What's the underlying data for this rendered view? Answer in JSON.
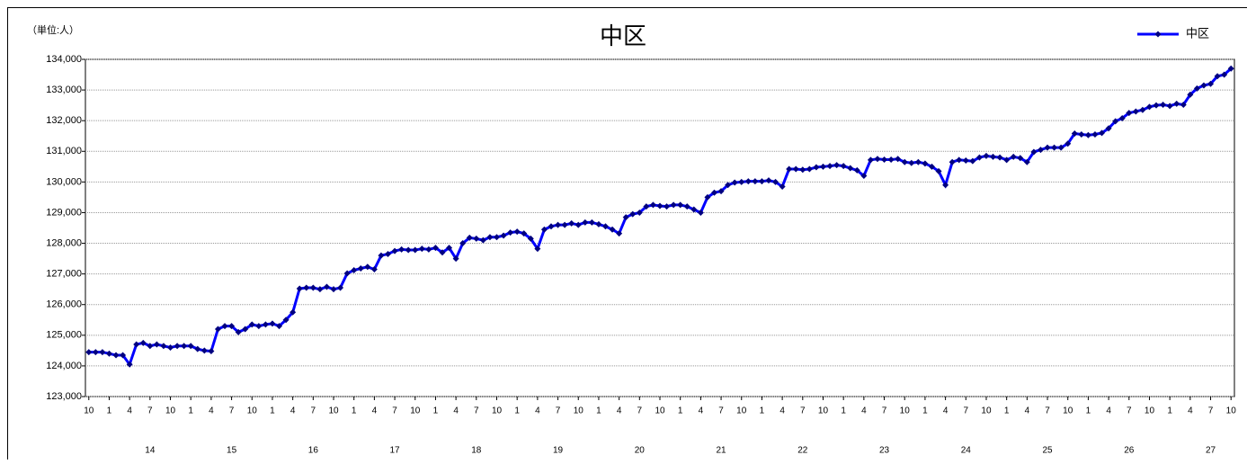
{
  "chart_data": {
    "type": "line",
    "title": "中区",
    "unit_label": "（単位:人）",
    "categories": [
      "10",
      null,
      null,
      "1",
      null,
      null,
      "4",
      null,
      null,
      "7",
      null,
      null,
      "10",
      null,
      null,
      "1",
      null,
      null,
      "4",
      null,
      null,
      "7",
      null,
      null,
      "10",
      null,
      null,
      "1",
      null,
      null,
      "4",
      null,
      null,
      "7",
      null,
      null,
      "10",
      null,
      null,
      "1",
      null,
      null,
      "4",
      null,
      null,
      "7",
      null,
      null,
      "10",
      null,
      null,
      "1",
      null,
      null,
      "4",
      null,
      null,
      "7",
      null,
      null,
      "10",
      null,
      null,
      "1",
      null,
      null,
      "4",
      null,
      null,
      "7",
      null,
      null,
      "10",
      null,
      null,
      "1",
      null,
      null,
      "4",
      null,
      null,
      "7",
      null,
      null,
      "10",
      null,
      null,
      "1",
      null,
      null,
      "4",
      null,
      null,
      "7",
      null,
      null,
      "10",
      null,
      null,
      "1",
      null,
      null,
      "4",
      null,
      null,
      "7",
      null,
      null,
      "10",
      null,
      null,
      "1",
      null,
      null,
      "4",
      null,
      null,
      "7",
      null,
      null,
      "10",
      null,
      null,
      "1",
      null,
      null,
      "4",
      null,
      null,
      "7",
      null,
      null,
      "10",
      null,
      null,
      "1",
      null,
      null,
      "4",
      null,
      null,
      "7",
      null,
      null,
      "10",
      null,
      null,
      "1",
      null,
      null,
      "4",
      null,
      null,
      "7",
      null,
      null,
      "10",
      null,
      null,
      "1",
      null,
      null,
      "4",
      null,
      null,
      "7",
      null,
      null,
      "10"
    ],
    "year_categories": [
      null,
      null,
      null,
      null,
      null,
      null,
      null,
      null,
      null,
      "14",
      null,
      null,
      null,
      null,
      null,
      null,
      null,
      null,
      null,
      null,
      null,
      "15",
      null,
      null,
      null,
      null,
      null,
      null,
      null,
      null,
      null,
      null,
      null,
      "16",
      null,
      null,
      null,
      null,
      null,
      null,
      null,
      null,
      null,
      null,
      null,
      "17",
      null,
      null,
      null,
      null,
      null,
      null,
      null,
      null,
      null,
      null,
      null,
      "18",
      null,
      null,
      null,
      null,
      null,
      null,
      null,
      null,
      null,
      null,
      null,
      "19",
      null,
      null,
      null,
      null,
      null,
      null,
      null,
      null,
      null,
      null,
      null,
      "20",
      null,
      null,
      null,
      null,
      null,
      null,
      null,
      null,
      null,
      null,
      null,
      "21",
      null,
      null,
      null,
      null,
      null,
      null,
      null,
      null,
      null,
      null,
      null,
      "22",
      null,
      null,
      null,
      null,
      null,
      null,
      null,
      null,
      null,
      null,
      null,
      "23",
      null,
      null,
      null,
      null,
      null,
      null,
      null,
      null,
      null,
      null,
      null,
      "24",
      null,
      null,
      null,
      null,
      null,
      null,
      null,
      null,
      null,
      null,
      null,
      "25",
      null,
      null,
      null,
      null,
      null,
      null,
      null,
      null,
      null,
      null,
      null,
      "26",
      null,
      null,
      null,
      null,
      null,
      null,
      null,
      null,
      null,
      null,
      null,
      "27",
      null,
      null,
      null
    ],
    "series": [
      {
        "name": "中区",
        "color": "#0000ff",
        "marker_color": "#000080",
        "values": [
          124450,
          124450,
          124450,
          124400,
          124350,
          124350,
          124050,
          124700,
          124750,
          124650,
          124700,
          124650,
          124600,
          124650,
          124650,
          124650,
          124550,
          124500,
          124480,
          125200,
          125300,
          125300,
          125100,
          125200,
          125350,
          125300,
          125350,
          125380,
          125300,
          125500,
          125750,
          126520,
          126550,
          126550,
          126500,
          126580,
          126500,
          126550,
          127020,
          127120,
          127180,
          127230,
          127150,
          127600,
          127650,
          127750,
          127800,
          127780,
          127780,
          127820,
          127800,
          127850,
          127700,
          127850,
          127500,
          128000,
          128180,
          128150,
          128100,
          128200,
          128200,
          128250,
          128350,
          128380,
          128320,
          128150,
          127820,
          128450,
          128550,
          128600,
          128600,
          128650,
          128600,
          128680,
          128680,
          128620,
          128550,
          128450,
          128320,
          128850,
          128950,
          129000,
          129200,
          129250,
          129220,
          129200,
          129250,
          129250,
          129200,
          129100,
          129000,
          129500,
          129650,
          129700,
          129900,
          129980,
          130000,
          130020,
          130020,
          130020,
          130050,
          130000,
          129850,
          130420,
          130420,
          130400,
          130420,
          130480,
          130500,
          130520,
          130550,
          130520,
          130450,
          130380,
          130200,
          130720,
          130750,
          130730,
          130730,
          130750,
          130650,
          130620,
          130650,
          130600,
          130500,
          130350,
          129900,
          130650,
          130720,
          130700,
          130680,
          130800,
          130850,
          130820,
          130800,
          130720,
          130820,
          130780,
          130650,
          130980,
          131050,
          131120,
          131120,
          131120,
          131250,
          131580,
          131550,
          131530,
          131550,
          131600,
          131750,
          131980,
          132080,
          132250,
          132300,
          132350,
          132450,
          132500,
          132520,
          132480,
          132550,
          132520,
          132850,
          133050,
          133150,
          133200,
          133450,
          133500,
          133700
        ]
      }
    ],
    "ylim": [
      123000,
      134000
    ],
    "yticks": [
      {
        "value": 123000,
        "label": "123,000"
      },
      {
        "value": 124000,
        "label": "124,000"
      },
      {
        "value": 125000,
        "label": "125,000"
      },
      {
        "value": 126000,
        "label": "126,000"
      },
      {
        "value": 127000,
        "label": "127,000"
      },
      {
        "value": 128000,
        "label": "128,000"
      },
      {
        "value": 129000,
        "label": "129,000"
      },
      {
        "value": 130000,
        "label": "130,000"
      },
      {
        "value": 131000,
        "label": "131,000"
      },
      {
        "value": 132000,
        "label": "132,000"
      },
      {
        "value": 133000,
        "label": "133,000"
      },
      {
        "value": 134000,
        "label": "134,000"
      }
    ],
    "grid": true,
    "legend": "top-right"
  }
}
